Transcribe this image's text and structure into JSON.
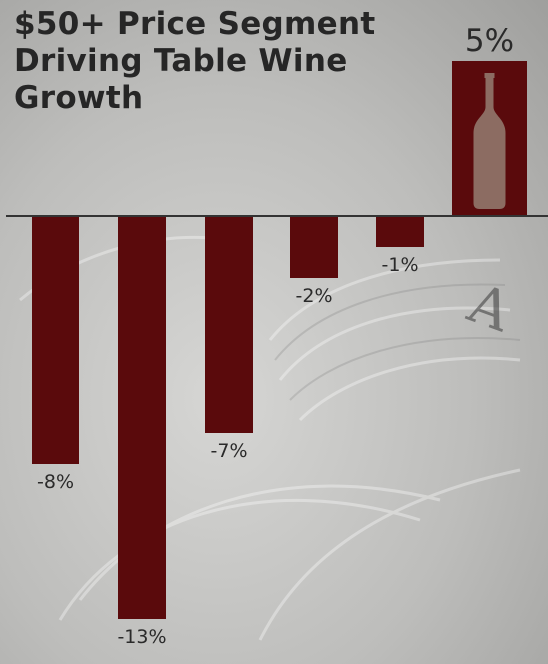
{
  "title": "$50+ Price Segment Driving Table Wine Growth",
  "colors": {
    "bar": "#5a0a0c",
    "bottle": "#8c6c62",
    "baseline": "#333333",
    "text": "#262626"
  },
  "chart_data": {
    "type": "bar",
    "title": "$50+ Price Segment Driving Table Wine Growth",
    "values": [
      -8,
      -13,
      -7,
      -2,
      -1,
      5
    ],
    "labels": [
      "-8%",
      "-13%",
      "-7%",
      "-2%",
      "-1%",
      "5%"
    ],
    "ylim": [
      -13,
      5
    ],
    "grid": false,
    "legend": "none",
    "highlight_icon": "wine-bottle-icon"
  }
}
